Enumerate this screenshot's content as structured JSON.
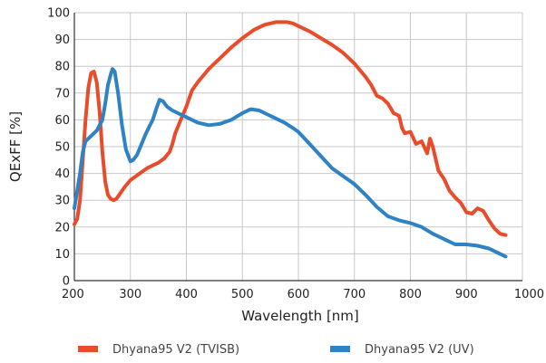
{
  "chart_data": {
    "type": "line",
    "title": "",
    "xlabel": "Wavelength  [nm]",
    "ylabel": "QExFF  [%]",
    "xlim": [
      200,
      1000
    ],
    "ylim": [
      0,
      100
    ],
    "x_ticks": [
      200,
      300,
      400,
      500,
      600,
      700,
      800,
      900,
      1000
    ],
    "y_ticks": [
      0,
      10,
      20,
      30,
      40,
      50,
      60,
      70,
      80,
      90,
      100
    ],
    "grid": true,
    "legend_position": "bottom",
    "series": [
      {
        "name": "Dhyana95 V2  (TVISB)",
        "color": "#e84c2b",
        "points": [
          [
            200,
            21
          ],
          [
            205,
            23
          ],
          [
            210,
            30
          ],
          [
            215,
            45
          ],
          [
            220,
            60
          ],
          [
            225,
            72
          ],
          [
            230,
            77.5
          ],
          [
            235,
            78
          ],
          [
            240,
            74
          ],
          [
            245,
            63
          ],
          [
            250,
            48
          ],
          [
            255,
            37
          ],
          [
            260,
            32
          ],
          [
            265,
            30.5
          ],
          [
            270,
            30
          ],
          [
            275,
            30.5
          ],
          [
            280,
            32
          ],
          [
            290,
            35
          ],
          [
            300,
            37.5
          ],
          [
            310,
            39
          ],
          [
            320,
            40.5
          ],
          [
            330,
            42
          ],
          [
            340,
            43
          ],
          [
            350,
            44
          ],
          [
            360,
            45.5
          ],
          [
            370,
            48
          ],
          [
            375,
            51
          ],
          [
            380,
            55
          ],
          [
            390,
            60
          ],
          [
            400,
            65
          ],
          [
            410,
            71
          ],
          [
            420,
            74
          ],
          [
            440,
            79
          ],
          [
            460,
            83
          ],
          [
            480,
            87
          ],
          [
            500,
            90.5
          ],
          [
            520,
            93.5
          ],
          [
            540,
            95.5
          ],
          [
            560,
            96.5
          ],
          [
            580,
            96.5
          ],
          [
            590,
            96
          ],
          [
            600,
            95
          ],
          [
            620,
            93
          ],
          [
            640,
            90.5
          ],
          [
            660,
            88
          ],
          [
            680,
            85
          ],
          [
            700,
            81
          ],
          [
            720,
            76
          ],
          [
            730,
            73
          ],
          [
            740,
            69
          ],
          [
            750,
            68
          ],
          [
            760,
            66
          ],
          [
            770,
            62.5
          ],
          [
            780,
            61.5
          ],
          [
            785,
            57
          ],
          [
            790,
            55
          ],
          [
            800,
            55.5
          ],
          [
            810,
            51
          ],
          [
            820,
            52
          ],
          [
            830,
            47.5
          ],
          [
            835,
            53
          ],
          [
            840,
            50
          ],
          [
            850,
            41
          ],
          [
            860,
            38
          ],
          [
            870,
            33.5
          ],
          [
            880,
            31
          ],
          [
            890,
            29
          ],
          [
            900,
            25.5
          ],
          [
            910,
            25
          ],
          [
            920,
            27
          ],
          [
            930,
            26
          ],
          [
            940,
            22.5
          ],
          [
            950,
            19.5
          ],
          [
            960,
            17.5
          ],
          [
            970,
            17
          ]
        ]
      },
      {
        "name": "Dhyana95 V2  (UV)",
        "color": "#2f83c4",
        "points": [
          [
            200,
            27
          ],
          [
            210,
            40
          ],
          [
            215,
            48
          ],
          [
            220,
            52
          ],
          [
            230,
            54
          ],
          [
            240,
            56
          ],
          [
            250,
            60
          ],
          [
            255,
            66
          ],
          [
            260,
            73
          ],
          [
            265,
            77
          ],
          [
            268,
            79
          ],
          [
            272,
            78
          ],
          [
            278,
            70
          ],
          [
            285,
            58
          ],
          [
            292,
            49
          ],
          [
            300,
            44.5
          ],
          [
            305,
            45
          ],
          [
            312,
            47
          ],
          [
            320,
            51
          ],
          [
            328,
            55
          ],
          [
            335,
            58
          ],
          [
            340,
            60
          ],
          [
            346,
            64
          ],
          [
            352,
            67.5
          ],
          [
            358,
            67
          ],
          [
            365,
            65
          ],
          [
            375,
            63.5
          ],
          [
            385,
            62.5
          ],
          [
            400,
            61
          ],
          [
            420,
            59
          ],
          [
            440,
            58
          ],
          [
            460,
            58.5
          ],
          [
            480,
            60
          ],
          [
            500,
            62.5
          ],
          [
            515,
            64
          ],
          [
            530,
            63.5
          ],
          [
            545,
            62
          ],
          [
            560,
            60.5
          ],
          [
            575,
            59
          ],
          [
            590,
            57
          ],
          [
            600,
            55.5
          ],
          [
            620,
            51
          ],
          [
            640,
            46.5
          ],
          [
            660,
            42
          ],
          [
            680,
            39
          ],
          [
            700,
            36
          ],
          [
            720,
            32
          ],
          [
            740,
            27.5
          ],
          [
            760,
            24
          ],
          [
            780,
            22.5
          ],
          [
            800,
            21.5
          ],
          [
            820,
            20
          ],
          [
            840,
            17.5
          ],
          [
            860,
            15.5
          ],
          [
            870,
            14.5
          ],
          [
            880,
            13.5
          ],
          [
            900,
            13.5
          ],
          [
            920,
            13
          ],
          [
            940,
            12
          ],
          [
            955,
            10.5
          ],
          [
            970,
            9
          ]
        ]
      }
    ]
  },
  "legend": {
    "items": [
      {
        "label": "Dhyana95 V2  (TVISB)",
        "color": "#e84c2b"
      },
      {
        "label": "Dhyana95 V2  (UV)",
        "color": "#2f83c4"
      }
    ]
  }
}
